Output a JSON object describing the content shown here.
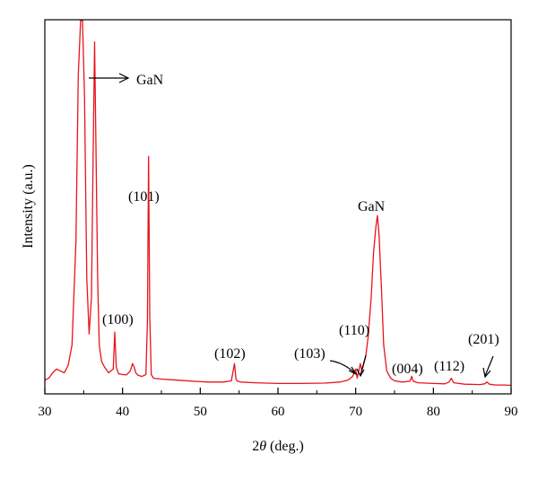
{
  "chart_data": {
    "type": "line",
    "xlabel_prefix": "2",
    "xlabel_symbol": "θ",
    "xlabel_suffix": " (deg.)",
    "ylabel": "Intensity (a.u.)",
    "xlim": [
      30,
      90
    ],
    "ylim": [
      0,
      100
    ],
    "x_ticks": [
      30,
      40,
      50,
      60,
      70,
      80,
      90
    ],
    "y_tick_labels": false,
    "grid": false,
    "series": [
      {
        "color": "#e8141b",
        "x": [
          30.0,
          30.5,
          31.0,
          31.5,
          32.0,
          32.5,
          33.0,
          33.5,
          34.0,
          34.3,
          34.6,
          34.85,
          35.1,
          35.4,
          35.7,
          36.0,
          36.2,
          36.4,
          36.6,
          36.8,
          37.0,
          37.3,
          37.7,
          38.2,
          38.8,
          39.0,
          39.2,
          39.5,
          40.0,
          40.5,
          41.0,
          41.3,
          41.5,
          41.7,
          42.0,
          42.5,
          43.0,
          43.2,
          43.35,
          43.5,
          43.7,
          44.0,
          45.0,
          47.0,
          49.0,
          51.0,
          53.0,
          54.0,
          54.4,
          54.6,
          54.8,
          55.2,
          57.0,
          60.0,
          63.0,
          66.0,
          68.0,
          69.0,
          69.6,
          70.0,
          70.2,
          70.4,
          70.6,
          70.8,
          71.0,
          71.3,
          71.6,
          72.0,
          72.3,
          72.6,
          72.8,
          73.0,
          73.3,
          73.6,
          74.0,
          74.5,
          75.0,
          76.0,
          77.0,
          77.2,
          77.4,
          78.0,
          80.0,
          81.5,
          82.0,
          82.3,
          82.6,
          84.0,
          86.0,
          86.6,
          86.9,
          87.2,
          88.0,
          89.0,
          90.0
        ],
        "y": [
          2.5,
          3.0,
          4.5,
          5.5,
          5.0,
          4.5,
          6.5,
          12.0,
          40.0,
          85.0,
          100.0,
          100.0,
          80.0,
          30.0,
          15.0,
          25.0,
          60.0,
          94.0,
          62.0,
          30.0,
          12.0,
          7.5,
          6.0,
          4.5,
          5.5,
          15.5,
          6.0,
          4.2,
          4.0,
          3.9,
          5.0,
          7.0,
          6.0,
          4.5,
          3.8,
          3.5,
          4.0,
          18.0,
          63.0,
          20.0,
          4.0,
          3.0,
          2.8,
          2.5,
          2.2,
          2.0,
          2.0,
          2.3,
          7.0,
          2.8,
          2.2,
          2.0,
          1.8,
          1.6,
          1.6,
          1.7,
          2.0,
          2.5,
          3.5,
          5.5,
          3.0,
          5.0,
          7.0,
          5.0,
          6.5,
          9.0,
          14.0,
          25.0,
          37.0,
          44.0,
          47.0,
          42.0,
          28.0,
          12.0,
          5.0,
          3.0,
          2.3,
          2.0,
          2.2,
          3.5,
          2.2,
          1.8,
          1.6,
          1.5,
          2.0,
          3.0,
          1.8,
          1.4,
          1.3,
          1.5,
          2.0,
          1.4,
          1.2,
          1.2,
          1.1
        ]
      }
    ],
    "annotations": [
      {
        "text": "GaN",
        "arrow": "right"
      },
      {
        "text": "(101)"
      },
      {
        "text": "(100)"
      },
      {
        "text": "(102)"
      },
      {
        "text": "GaN"
      },
      {
        "text": "(103)",
        "arrow": "down-right"
      },
      {
        "text": "(110)",
        "arrow": "down"
      },
      {
        "text": "(004)"
      },
      {
        "text": "(112)"
      },
      {
        "text": "(201)",
        "arrow": "down-left"
      }
    ]
  }
}
